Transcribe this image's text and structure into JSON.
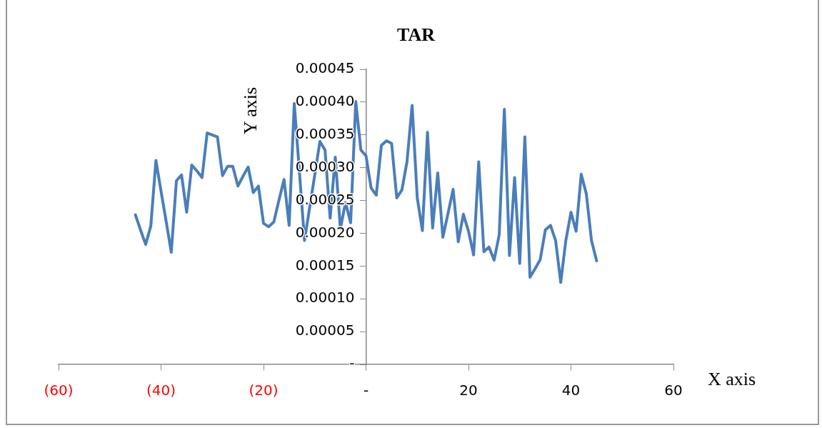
{
  "chart_data": {
    "type": "line",
    "title": "TAR",
    "xlabel": "X axis",
    "ylabel": "Y axis",
    "x": [
      -45,
      -44,
      -43,
      -42,
      -41,
      -40,
      -39,
      -38,
      -37,
      -36,
      -35,
      -34,
      -33,
      -32,
      -31,
      -30,
      -29,
      -28,
      -27,
      -26,
      -25,
      -24,
      -23,
      -22,
      -21,
      -20,
      -19,
      -18,
      -17,
      -16,
      -15,
      -14,
      -13,
      -12,
      -11,
      -10,
      -9,
      -8,
      -7,
      -6,
      -5,
      -4,
      -3,
      -2,
      -1,
      0,
      1,
      2,
      3,
      4,
      5,
      6,
      7,
      8,
      9,
      10,
      11,
      12,
      13,
      14,
      15,
      16,
      17,
      18,
      19,
      20,
      21,
      22,
      23,
      24,
      25,
      26,
      27,
      28,
      29,
      30,
      31,
      32,
      33,
      34,
      35,
      36,
      37,
      38,
      39,
      40,
      41,
      42,
      43,
      44,
      45
    ],
    "series": [
      {
        "color": "#4a7ebb",
        "values": [
          0.000228,
          0.000205,
          0.000183,
          0.000211,
          0.000311,
          0.000264,
          0.000218,
          0.000171,
          0.00028,
          0.000289,
          0.000232,
          0.000304,
          0.000295,
          0.000285,
          0.000353,
          0.00035,
          0.000347,
          0.000288,
          0.000302,
          0.000302,
          0.000272,
          0.000287,
          0.000301,
          0.000262,
          0.000272,
          0.000215,
          0.00021,
          0.000217,
          0.00025,
          0.000282,
          0.000212,
          0.000398,
          0.000294,
          0.000189,
          0.000239,
          0.000289,
          0.00034,
          0.000327,
          0.000223,
          0.000316,
          0.000207,
          0.000247,
          0.000216,
          0.000401,
          0.000327,
          0.000318,
          0.000269,
          0.000258,
          0.000334,
          0.000341,
          0.000337,
          0.000254,
          0.000266,
          0.000309,
          0.000395,
          0.000254,
          0.000204,
          0.000354,
          0.000208,
          0.000292,
          0.000194,
          0.00023,
          0.000267,
          0.000187,
          0.000229,
          0.000203,
          0.000167,
          0.000309,
          0.000172,
          0.000179,
          0.000159,
          0.000198,
          0.000389,
          0.000166,
          0.000285,
          0.000154,
          0.000347,
          0.000133,
          0.000146,
          0.00016,
          0.000205,
          0.000212,
          0.000189,
          0.000125,
          0.000189,
          0.000232,
          0.000203,
          0.00029,
          0.00026,
          0.000189,
          0.000158
        ]
      }
    ],
    "xlim": [
      -60,
      60
    ],
    "xticks": [
      {
        "value": -60,
        "label": "(60)"
      },
      {
        "value": -40,
        "label": "(40)"
      },
      {
        "value": -20,
        "label": "(20)"
      },
      {
        "value": 0,
        "label": "-"
      },
      20,
      40,
      60
    ],
    "ylim": [
      0,
      0.00045
    ],
    "yticks": [
      {
        "value": 0,
        "label": "-"
      },
      {
        "value": 5e-05,
        "label": "0.00005"
      },
      {
        "value": 0.0001,
        "label": "0.00010"
      },
      {
        "value": 0.00015,
        "label": "0.00015"
      },
      {
        "value": 0.0002,
        "label": "0.00020"
      },
      {
        "value": 0.00025,
        "label": "0.00025"
      },
      {
        "value": 0.0003,
        "label": "0.00030"
      },
      {
        "value": 0.00035,
        "label": "0.00035"
      },
      {
        "value": 0.0004,
        "label": "0.00040"
      },
      {
        "value": 0.00045,
        "label": "0.00045"
      }
    ],
    "grid": false,
    "legend": false,
    "marker": "none",
    "line_style": "solid"
  }
}
